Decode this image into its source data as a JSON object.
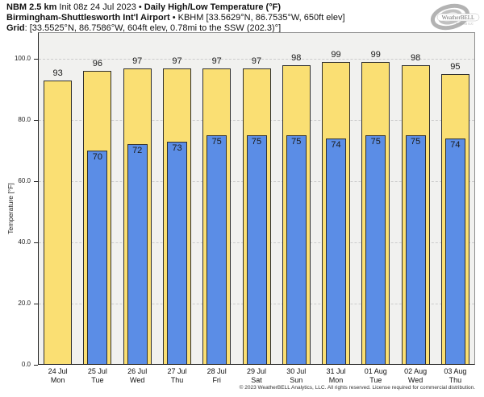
{
  "header": {
    "line1_bold1": "NBM 2.5 km",
    "line1_mid": " Init 08z 24 Jul 2023 • ",
    "line1_bold2": "Daily High/Low Temperature (°F)",
    "line2_bold": "Birmingham-Shuttlesworth Int'l Airport",
    "line2_rest": " • KBHM [33.5629°N, 86.7535°W, 650ft elev]",
    "line3_bold": "Grid",
    "line3_rest": ": [33.5525°N, 86.7586°W, 604ft elev, 0.78mi to the SSW (202.3)°]"
  },
  "logo": {
    "brand": "WeatherBELL",
    "tagline": "Analytics LLC"
  },
  "chart_data": {
    "type": "bar",
    "title": "Daily High/Low Temperature (°F)",
    "ylabel": "Temperature [°F]",
    "ylim": [
      0,
      108.7
    ],
    "yticks": [
      0,
      20,
      40,
      60,
      80,
      100
    ],
    "ytick_labels": [
      "0.0",
      "20.0",
      "40.0",
      "60.0",
      "80.0",
      "100.0"
    ],
    "grid": "horizontal-dashed",
    "legend": "none",
    "plot_bg": "#f1f1ef",
    "categories": [
      {
        "date": "24 Jul",
        "day": "Mon"
      },
      {
        "date": "25 Jul",
        "day": "Tue"
      },
      {
        "date": "26 Jul",
        "day": "Wed"
      },
      {
        "date": "27 Jul",
        "day": "Thu"
      },
      {
        "date": "28 Jul",
        "day": "Fri"
      },
      {
        "date": "29 Jul",
        "day": "Sat"
      },
      {
        "date": "30 Jul",
        "day": "Sun"
      },
      {
        "date": "31 Jul",
        "day": "Mon"
      },
      {
        "date": "01 Aug",
        "day": "Tue"
      },
      {
        "date": "02 Aug",
        "day": "Wed"
      },
      {
        "date": "03 Aug",
        "day": "Thu"
      }
    ],
    "series": [
      {
        "name": "Daily High",
        "color": "#fadf73",
        "border": "#2f2f2f",
        "values": [
          93,
          96,
          97,
          97,
          97,
          97,
          98,
          99,
          99,
          98,
          95
        ]
      },
      {
        "name": "Daily Low",
        "color": "#5b8de6",
        "border": "#2f2f2f",
        "values": [
          null,
          70,
          72,
          73,
          75,
          75,
          75,
          74,
          75,
          75,
          74
        ]
      }
    ]
  },
  "footer": "© 2023 WeatherBELL Analytics, LLC. All rights reserved. License required for commercial distribution."
}
